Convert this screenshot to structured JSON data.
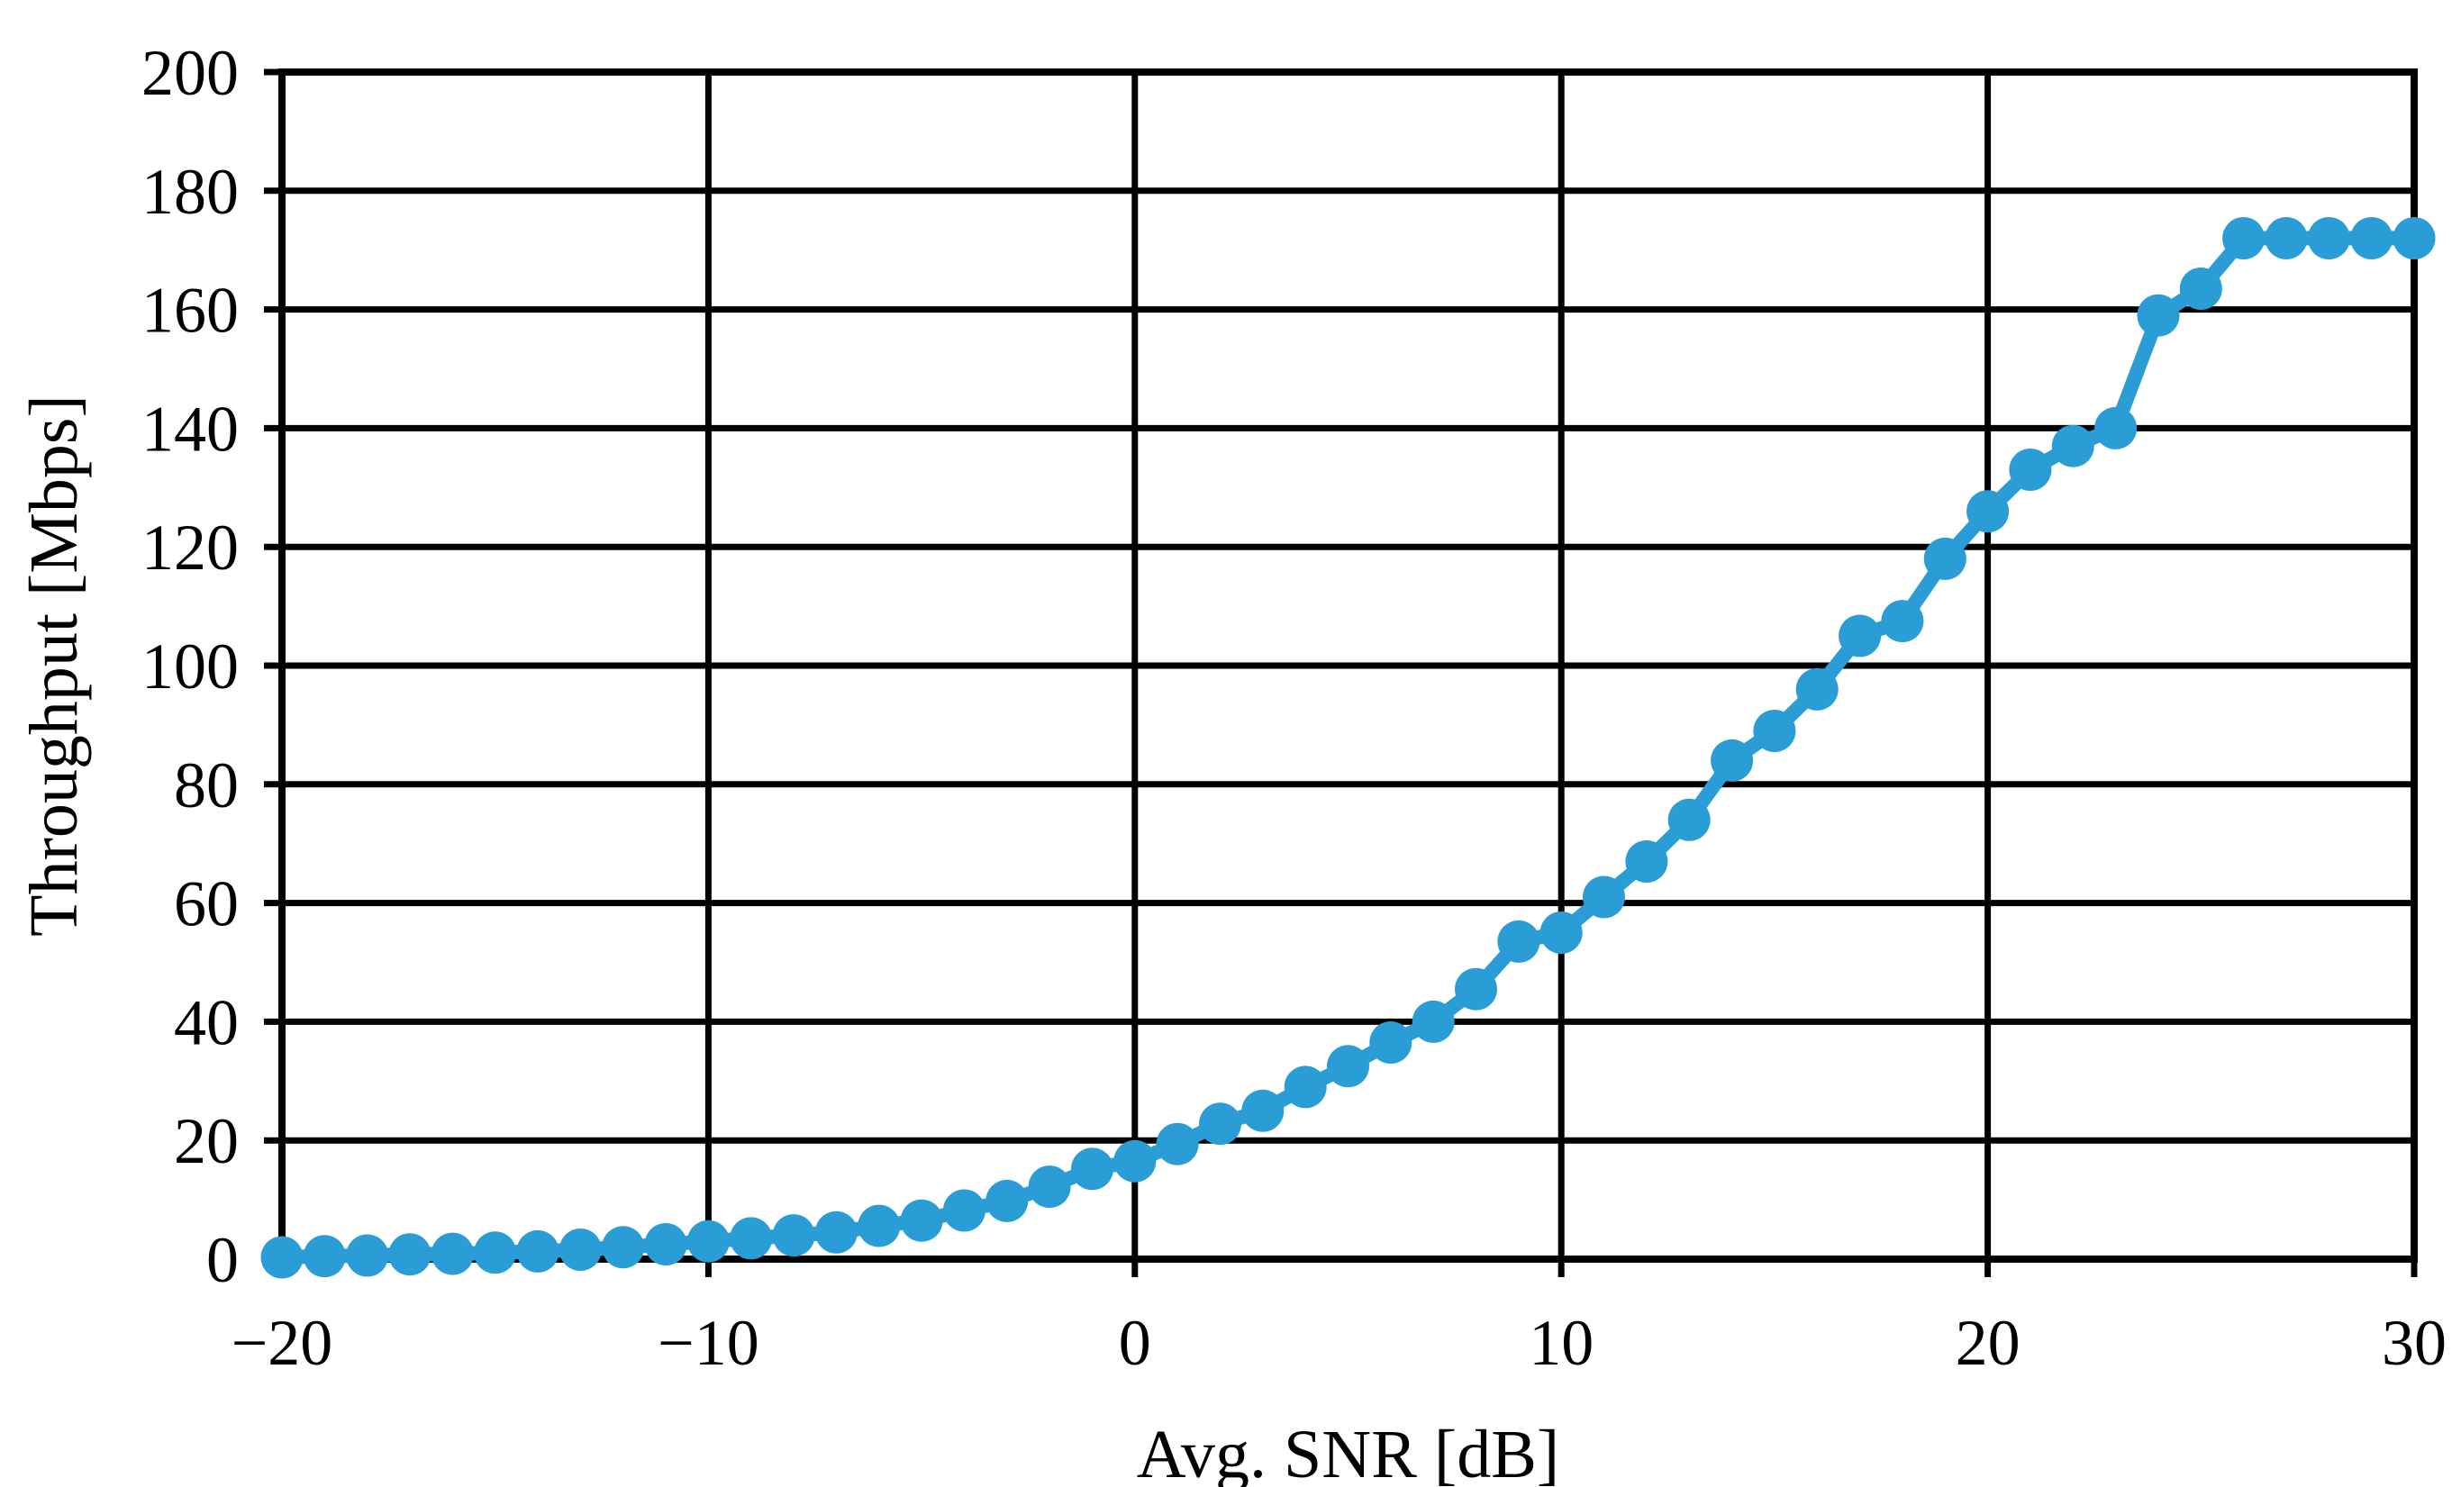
{
  "chart": {
    "xlabel": "Avg. SNR [dB]",
    "ylabel": "Throughput [Mbps]"
  },
  "chart_data": {
    "type": "line",
    "title": "",
    "xlabel": "Avg. SNR [dB]",
    "ylabel": "Throughput [Mbps]",
    "xlim": [
      -20,
      30
    ],
    "ylim": [
      0,
      200
    ],
    "grid": true,
    "legend_position": "none",
    "line_color": "#2B9DD6",
    "marker": "circle",
    "x": [
      -20,
      -19,
      -18,
      -17,
      -16,
      -15,
      -14,
      -13,
      -12,
      -11,
      -10,
      -9,
      -8,
      -7,
      -6,
      -5,
      -4,
      -3,
      -2,
      -1,
      0,
      1,
      2,
      3,
      4,
      5,
      6,
      7,
      8,
      9,
      10,
      11,
      12,
      13,
      14,
      15,
      16,
      17,
      18,
      19,
      20,
      21,
      22,
      23,
      24,
      25,
      26,
      27,
      28,
      29,
      30
    ],
    "series": [
      {
        "name": "Throughput",
        "values": [
          0.3,
          0.5,
          0.6,
          0.8,
          0.9,
          1.1,
          1.3,
          1.6,
          2.0,
          2.5,
          3.0,
          3.5,
          4.0,
          4.5,
          5.6,
          6.5,
          8.2,
          9.8,
          12.2,
          15.2,
          16.5,
          19.4,
          22.8,
          25.0,
          29.0,
          32.5,
          36.5,
          40.0,
          45.5,
          53.5,
          55.0,
          61.0,
          67.0,
          74.0,
          84.0,
          89.0,
          96.0,
          105.0,
          107.5,
          118.0,
          126.0,
          133.0,
          137.0,
          140.0,
          159.0,
          163.5,
          172.0,
          172.0,
          172.0,
          172.0,
          172.0
        ]
      }
    ],
    "xticks": [
      {
        "value": -20,
        "label": "−20"
      },
      {
        "value": -10,
        "label": "−10"
      },
      {
        "value": 0,
        "label": "0"
      },
      {
        "value": 10,
        "label": "10"
      },
      {
        "value": 20,
        "label": "20"
      },
      {
        "value": 30,
        "label": "30"
      }
    ],
    "yticks": [
      {
        "value": 0,
        "label": "0"
      },
      {
        "value": 20,
        "label": "20"
      },
      {
        "value": 40,
        "label": "40"
      },
      {
        "value": 60,
        "label": "60"
      },
      {
        "value": 80,
        "label": "80"
      },
      {
        "value": 100,
        "label": "100"
      },
      {
        "value": 120,
        "label": "120"
      },
      {
        "value": 140,
        "label": "140"
      },
      {
        "value": 160,
        "label": "160"
      },
      {
        "value": 180,
        "label": "180"
      },
      {
        "value": 200,
        "label": "200"
      }
    ]
  }
}
